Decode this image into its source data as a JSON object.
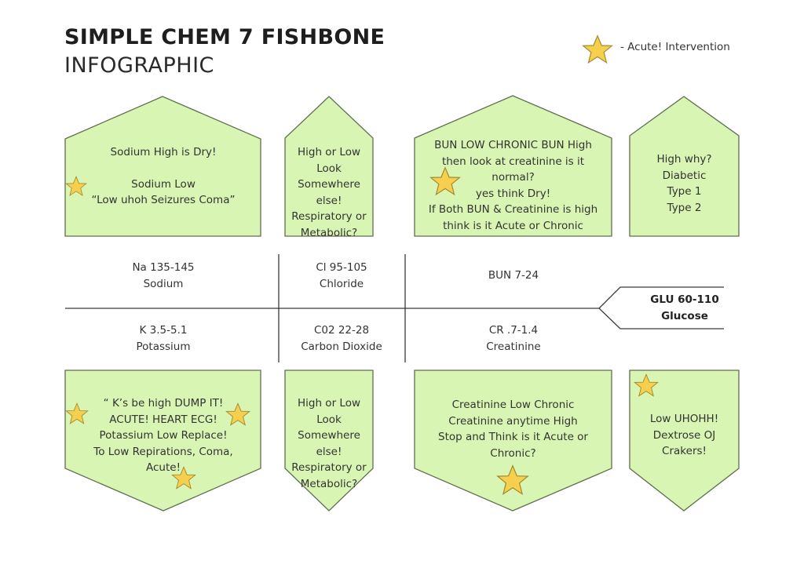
{
  "title": {
    "line1": "SIMPLE CHEM 7 FISHBONE",
    "line2": "INFOGRAPHIC"
  },
  "legend": {
    "icon": "star-icon",
    "label": "- Acute! Intervention",
    "star_color": "#f6cf4f"
  },
  "colors": {
    "box_fill": "#d9f5b3",
    "box_stroke": "#5f6f50",
    "line": "#3a3a3a"
  },
  "top_boxes": [
    {
      "lines": [
        "Sodium High is Dry!",
        "",
        "Sodium Low",
        "“Low uhoh Seizures Coma”"
      ],
      "acute": true
    },
    {
      "lines": [
        "High or Low",
        "Look Somewhere",
        "else!",
        "Respiratory or",
        "Metabolic?"
      ],
      "acute": false
    },
    {
      "lines": [
        "BUN LOW CHRONIC BUN High",
        "then look at creatinine is it",
        "normal?",
        "yes think Dry!",
        "If Both BUN & Creatinine is high",
        "think is it Acute or Chronic"
      ],
      "acute": true
    },
    {
      "lines": [
        "High why?",
        "Diabetic",
        "Type 1",
        "Type 2"
      ],
      "acute": false
    }
  ],
  "labs": {
    "sodium": {
      "range": "Na 135-145",
      "name": "Sodium"
    },
    "chloride": {
      "range": "Cl 95-105",
      "name": "Chloride"
    },
    "bun": {
      "range": "BUN 7-24"
    },
    "potassium": {
      "range": "K 3.5-5.1",
      "name": "Potassium"
    },
    "co2": {
      "range": "C02 22-28",
      "name": "Carbon Dioxide"
    },
    "creatinine": {
      "range": "CR .7-1.4",
      "name": "Creatinine"
    },
    "glucose": {
      "range": "GLU 60-110",
      "name": "Glucose"
    }
  },
  "bottom_boxes": [
    {
      "lines": [
        "“ K’s be high DUMP IT!",
        "ACUTE! HEART ECG!",
        "Potassium Low Replace!",
        "To Low Repirations, Coma,",
        "Acute!"
      ],
      "acute": true
    },
    {
      "lines": [
        "High or Low",
        "Look Somewhere",
        "else!",
        "Respiratory or",
        "Metabolic?"
      ],
      "acute": false
    },
    {
      "lines": [
        "Creatinine Low Chronic",
        "Creatinine anytime High",
        "Stop and Think is it Acute or",
        "Chronic?"
      ],
      "acute": true
    },
    {
      "lines": [
        "Low UHOHH!",
        "Dextrose OJ",
        "Crakers!"
      ],
      "acute": true
    }
  ]
}
